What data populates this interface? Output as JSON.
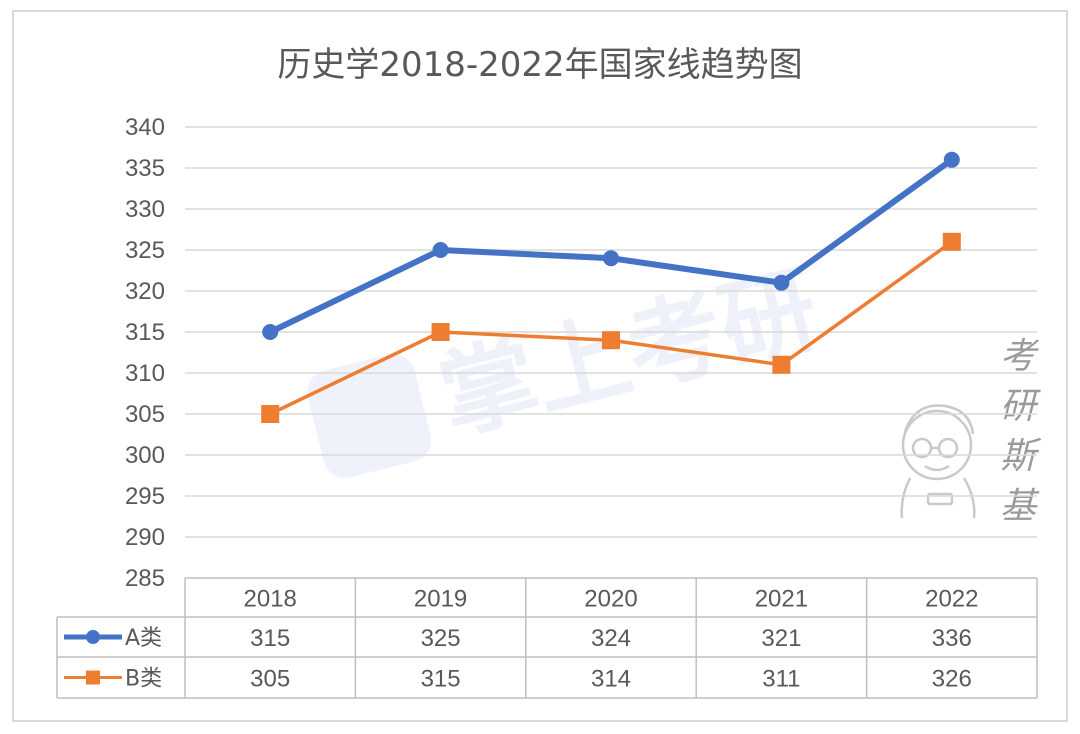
{
  "chart_data": {
    "type": "line",
    "title": "历史学2018-2022年国家线趋势图",
    "categories": [
      "2018",
      "2019",
      "2020",
      "2021",
      "2022"
    ],
    "series": [
      {
        "name": "A类",
        "values": [
          315,
          325,
          324,
          321,
          336
        ],
        "color": "#4472C4",
        "marker": "circle"
      },
      {
        "name": "B类",
        "values": [
          305,
          315,
          314,
          311,
          326
        ],
        "color": "#ED7D31",
        "marker": "square"
      }
    ],
    "ylim": [
      285,
      340
    ],
    "yticks": [
      285,
      290,
      295,
      300,
      305,
      310,
      315,
      320,
      325,
      330,
      335,
      340
    ],
    "grid": true,
    "legend": "data-table",
    "data_table": true
  },
  "watermarks": {
    "center_text": "掌上考研",
    "side_text": [
      "考",
      "研",
      "斯",
      "基"
    ]
  }
}
